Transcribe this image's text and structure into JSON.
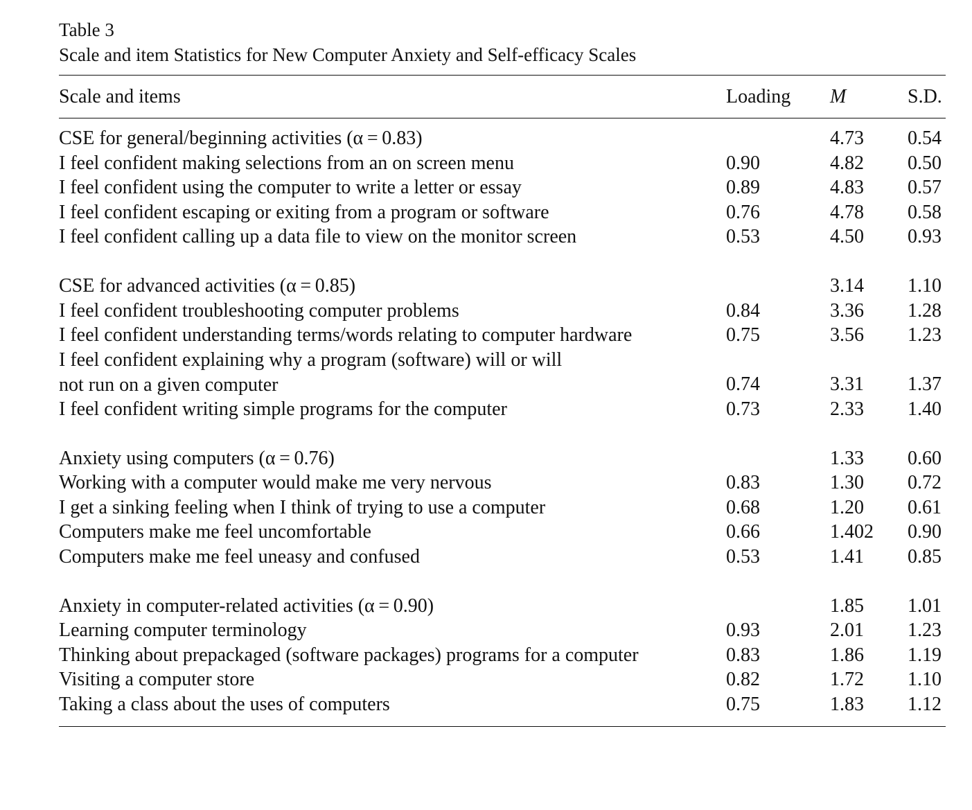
{
  "table": {
    "label": "Table 3",
    "caption": "Scale and item Statistics for New Computer Anxiety and Self-efficacy Scales",
    "headers": {
      "item": "Scale and items",
      "loading": "Loading",
      "m": "M",
      "sd": "S.D."
    },
    "groups": [
      {
        "rows": [
          {
            "item": "CSE for general/beginning activities (α = 0.83)",
            "loading": "",
            "m": "4.73",
            "sd": "0.54"
          },
          {
            "item": "I feel confident making selections from an on screen menu",
            "loading": "0.90",
            "m": "4.82",
            "sd": "0.50"
          },
          {
            "item": "I feel confident using the computer to write a letter or essay",
            "loading": "0.89",
            "m": "4.83",
            "sd": "0.57"
          },
          {
            "item": "I feel confident escaping or exiting from a program or software",
            "loading": "0.76",
            "m": "4.78",
            "sd": "0.58"
          },
          {
            "item": "I feel confident calling up a data file to view on the monitor screen",
            "loading": "0.53",
            "m": "4.50",
            "sd": "0.93"
          }
        ]
      },
      {
        "rows": [
          {
            "item": "CSE for advanced activities (α = 0.85)",
            "loading": "",
            "m": "3.14",
            "sd": "1.10"
          },
          {
            "item": "I feel confident troubleshooting computer problems",
            "loading": "0.84",
            "m": "3.36",
            "sd": "1.28"
          },
          {
            "item": "I feel confident understanding terms/words relating to computer hardware",
            "loading": "0.75",
            "m": "3.56",
            "sd": "1.23"
          },
          {
            "item": "I feel confident explaining why a program (software) will or will not run on a given computer",
            "loading": "0.74",
            "m": "3.31",
            "sd": "1.37"
          },
          {
            "item": "I feel confident writing simple programs for the computer",
            "loading": "0.73",
            "m": "2.33",
            "sd": "1.40"
          }
        ]
      },
      {
        "rows": [
          {
            "item": "Anxiety using computers (α = 0.76)",
            "loading": "",
            "m": "1.33",
            "sd": "0.60"
          },
          {
            "item": "Working with a computer would make me very nervous",
            "loading": "0.83",
            "m": "1.30",
            "sd": "0.72"
          },
          {
            "item": "I get a sinking feeling when I think of trying to use a computer",
            "loading": "0.68",
            "m": "1.20",
            "sd": "0.61"
          },
          {
            "item": "Computers make me feel uncomfortable",
            "loading": "0.66",
            "m": "1.402",
            "sd": "0.90"
          },
          {
            "item": "Computers make me feel uneasy and confused",
            "loading": "0.53",
            "m": "1.41",
            "sd": "0.85"
          }
        ]
      },
      {
        "rows": [
          {
            "item": "Anxiety in computer-related activities (α = 0.90)",
            "loading": "",
            "m": "1.85",
            "sd": "1.01"
          },
          {
            "item": "Learning computer terminology",
            "loading": "0.93",
            "m": "2.01",
            "sd": "1.23"
          },
          {
            "item": "Thinking about prepackaged (software packages) programs for a computer",
            "loading": "0.83",
            "m": "1.86",
            "sd": "1.19"
          },
          {
            "item": "Visiting a computer store",
            "loading": "0.82",
            "m": "1.72",
            "sd": "1.10"
          },
          {
            "item": "Taking a class about the uses of computers",
            "loading": "0.75",
            "m": "1.83",
            "sd": "1.12"
          }
        ]
      }
    ]
  }
}
